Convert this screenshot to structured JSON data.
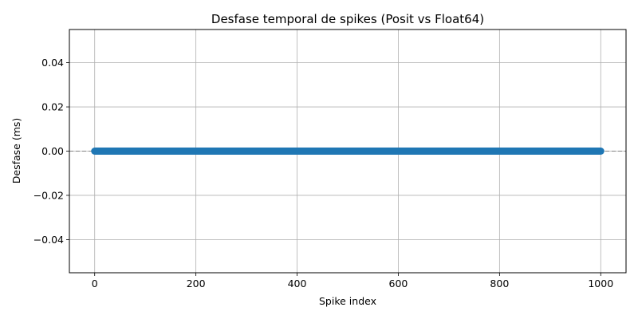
{
  "chart_data": {
    "type": "line",
    "title": "Desfase temporal de spikes (Posit vs Float64)",
    "xlabel": "Spike index",
    "ylabel": "Desfase (ms)",
    "xlim": [
      -50,
      1050
    ],
    "ylim": [
      -0.055,
      0.055
    ],
    "x_ticks": [
      0,
      200,
      400,
      600,
      800,
      1000
    ],
    "y_ticks": [
      -0.04,
      -0.02,
      0.0,
      0.02,
      0.04
    ],
    "x_tick_labels": [
      "0",
      "200",
      "400",
      "600",
      "800",
      "1000"
    ],
    "y_tick_labels": [
      "−0.04",
      "−0.02",
      "0.00",
      "0.02",
      "0.04"
    ],
    "grid": true,
    "reference_line": {
      "y": 0,
      "style": "dashed",
      "color": "#808080"
    },
    "series": [
      {
        "marker": "circle",
        "color": "#1f77b4",
        "x_start": 0,
        "x_end": 1000,
        "y_value": 0.0
      }
    ]
  }
}
